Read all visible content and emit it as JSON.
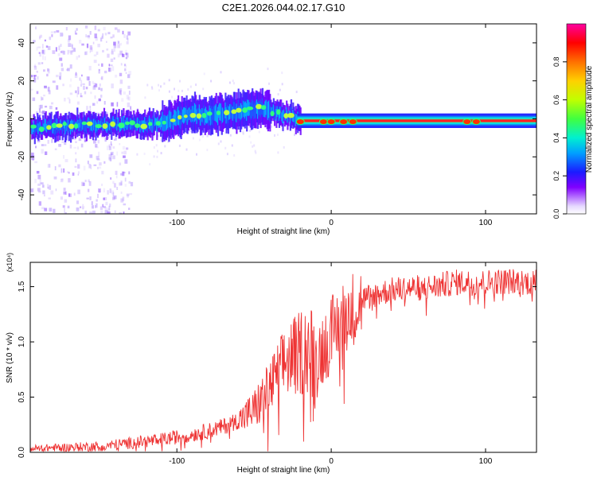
{
  "title": "C2E1.2026.044.02.17.G10",
  "chart_data": [
    {
      "type": "heatmap",
      "name": "spectrogram",
      "xlabel": "Height of straight line (km)",
      "ylabel": "Frequency (Hz)",
      "xlim": [
        -195,
        133
      ],
      "ylim": [
        -50,
        50
      ],
      "xticks": [
        -100,
        0,
        100
      ],
      "yticks": [
        -40,
        -20,
        0,
        20,
        40
      ],
      "colorbar": {
        "label": "Normalized spectral amplitude",
        "range": [
          0,
          1
        ],
        "ticks": [
          0.0,
          0.2,
          0.4,
          0.6,
          0.8
        ]
      },
      "ridge": {
        "description": "dominant frequency ridge vs height",
        "x": [
          -195,
          -180,
          -160,
          -140,
          -120,
          -110,
          -100,
          -90,
          -80,
          -70,
          -60,
          -50,
          -45,
          -40,
          -35,
          -30,
          -25,
          -20,
          -10,
          0,
          20,
          50,
          80,
          90,
          100,
          133
        ],
        "y": [
          -5,
          -4,
          -3,
          -3,
          -3,
          -2,
          0,
          2,
          2,
          3,
          4,
          5,
          6,
          4,
          3,
          2,
          1,
          0,
          -1,
          -1,
          -1,
          -1,
          -1,
          -2,
          -1,
          -1
        ]
      },
      "scatter_region": {
        "description": "diffuse low-amplitude speckle across full frequency range",
        "x_range": [
          -195,
          -130
        ],
        "y_range": [
          -50,
          50
        ]
      }
    },
    {
      "type": "line",
      "name": "snr",
      "xlabel": "Height of straight line (km)",
      "ylabel": "SNR (10 * v/v)",
      "y_multiplier": "(x10⁴)",
      "xlim": [
        -195,
        133
      ],
      "ylim": [
        0,
        1.72
      ],
      "xticks": [
        -100,
        0,
        100
      ],
      "yticks": [
        0.0,
        0.5,
        1.0,
        1.5
      ],
      "series": [
        {
          "name": "SNR",
          "color": "#ee3333",
          "x": [
            -195,
            -170,
            -150,
            -130,
            -110,
            -90,
            -80,
            -70,
            -60,
            -50,
            -40,
            -30,
            -25,
            -20,
            -15,
            -10,
            -5,
            0,
            5,
            10,
            15,
            20,
            30,
            40,
            50,
            60,
            70,
            80,
            90,
            100,
            110,
            120,
            133
          ],
          "y": [
            0.04,
            0.05,
            0.06,
            0.09,
            0.12,
            0.17,
            0.2,
            0.24,
            0.3,
            0.4,
            0.6,
            0.85,
            0.9,
            0.95,
            1.0,
            0.85,
            1.0,
            1.1,
            1.2,
            1.3,
            1.35,
            1.4,
            1.45,
            1.48,
            1.5,
            1.5,
            1.52,
            1.55,
            1.55,
            1.55,
            1.56,
            1.56,
            1.55
          ]
        }
      ]
    }
  ]
}
